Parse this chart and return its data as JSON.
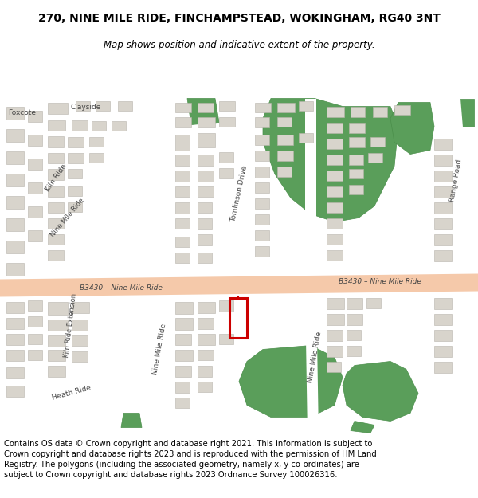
{
  "title_line1": "270, NINE MILE RIDE, FINCHAMPSTEAD, WOKINGHAM, RG40 3NT",
  "title_line2": "Map shows position and indicative extent of the property.",
  "copyright_text": "Contains OS data © Crown copyright and database right 2021. This information is subject to Crown copyright and database rights 2023 and is reproduced with the permission of HM Land Registry. The polygons (including the associated geometry, namely x, y co-ordinates) are subject to Crown copyright and database rights 2023 Ordnance Survey 100026316.",
  "bg_color": "#f2efe9",
  "map_bg": "#f0eeea",
  "road_color_main": "#f5c9aa",
  "road_color_secondary": "#ffffff",
  "road_outline": "#d0c8c0",
  "building_color": "#d8d4cc",
  "building_outline": "#b8b4ac",
  "green_color": "#5a9e5a",
  "green_outline": "#4a8e4a",
  "highlight_color": "#cc0000",
  "road_label_color": "#444444",
  "title_fontsize": 10,
  "subtitle_fontsize": 8.5,
  "copyright_fontsize": 7.2
}
